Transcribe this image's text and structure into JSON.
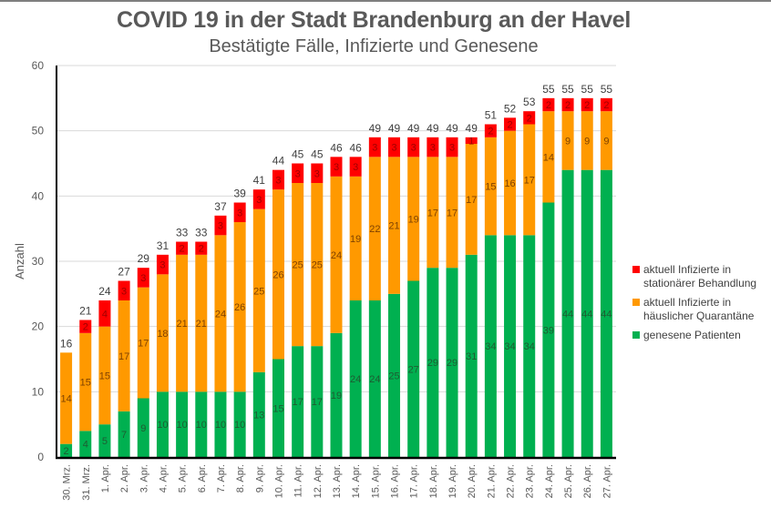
{
  "chart_data": {
    "type": "bar",
    "stacked": true,
    "title": "COVID 19 in der Stadt Brandenburg an der Havel",
    "subtitle": "Bestätigte Fälle, Infizierte und Genesene",
    "xlabel": "",
    "ylabel": "Anzahl",
    "ylim": [
      0,
      60
    ],
    "yticks": [
      0,
      10,
      20,
      30,
      40,
      50,
      60
    ],
    "grid": true,
    "legend_position": "right",
    "categories": [
      "30. Mrz.",
      "31. Mrz.",
      "1. Apr.",
      "2. Apr.",
      "3. Apr.",
      "4. Apr.",
      "5. Apr.",
      "6. Apr.",
      "7. Apr.",
      "8. Apr.",
      "9. Apr.",
      "10. Apr.",
      "11. Apr.",
      "12. Apr.",
      "13. Apr.",
      "14. Apr.",
      "15. Apr.",
      "16. Apr.",
      "17. Apr.",
      "18. Apr.",
      "19. Apr.",
      "20. Apr.",
      "21. Apr.",
      "22. Apr.",
      "23. Apr.",
      "24. Apr.",
      "25. Apr.",
      "26. Apr.",
      "27. Apr."
    ],
    "series": [
      {
        "name": "genesene Patienten",
        "color": "#00b050",
        "values": [
          2,
          4,
          5,
          7,
          9,
          10,
          10,
          10,
          10,
          10,
          13,
          15,
          17,
          17,
          19,
          24,
          24,
          25,
          27,
          29,
          29,
          31,
          34,
          34,
          34,
          39,
          44,
          44,
          44
        ]
      },
      {
        "name": "aktuell Infizierte in häuslicher Quarantäne",
        "color": "#ff9900",
        "values": [
          14,
          15,
          15,
          17,
          17,
          18,
          21,
          21,
          24,
          26,
          25,
          26,
          25,
          25,
          24,
          19,
          22,
          21,
          19,
          17,
          17,
          17,
          15,
          16,
          17,
          14,
          9,
          9,
          9
        ]
      },
      {
        "name": "aktuell Infizierte in stationärer Behandlung",
        "color": "#ff0000",
        "values": [
          0,
          2,
          4,
          3,
          3,
          3,
          2,
          2,
          3,
          3,
          3,
          3,
          3,
          3,
          3,
          3,
          3,
          3,
          3,
          3,
          3,
          1,
          2,
          2,
          2,
          2,
          2,
          2,
          2
        ]
      }
    ],
    "totals": [
      16,
      21,
      24,
      27,
      29,
      31,
      33,
      33,
      37,
      39,
      41,
      44,
      45,
      45,
      46,
      46,
      49,
      49,
      49,
      49,
      49,
      49,
      51,
      52,
      53,
      55,
      55,
      55,
      55
    ],
    "legend": [
      {
        "label": "aktuell Infizierte in stationärer Behandlung",
        "color": "#ff0000"
      },
      {
        "label": "aktuell Infizierte in häuslicher Quarantäne",
        "color": "#ff9900"
      },
      {
        "label": "genesene Patienten",
        "color": "#00b050"
      }
    ]
  }
}
